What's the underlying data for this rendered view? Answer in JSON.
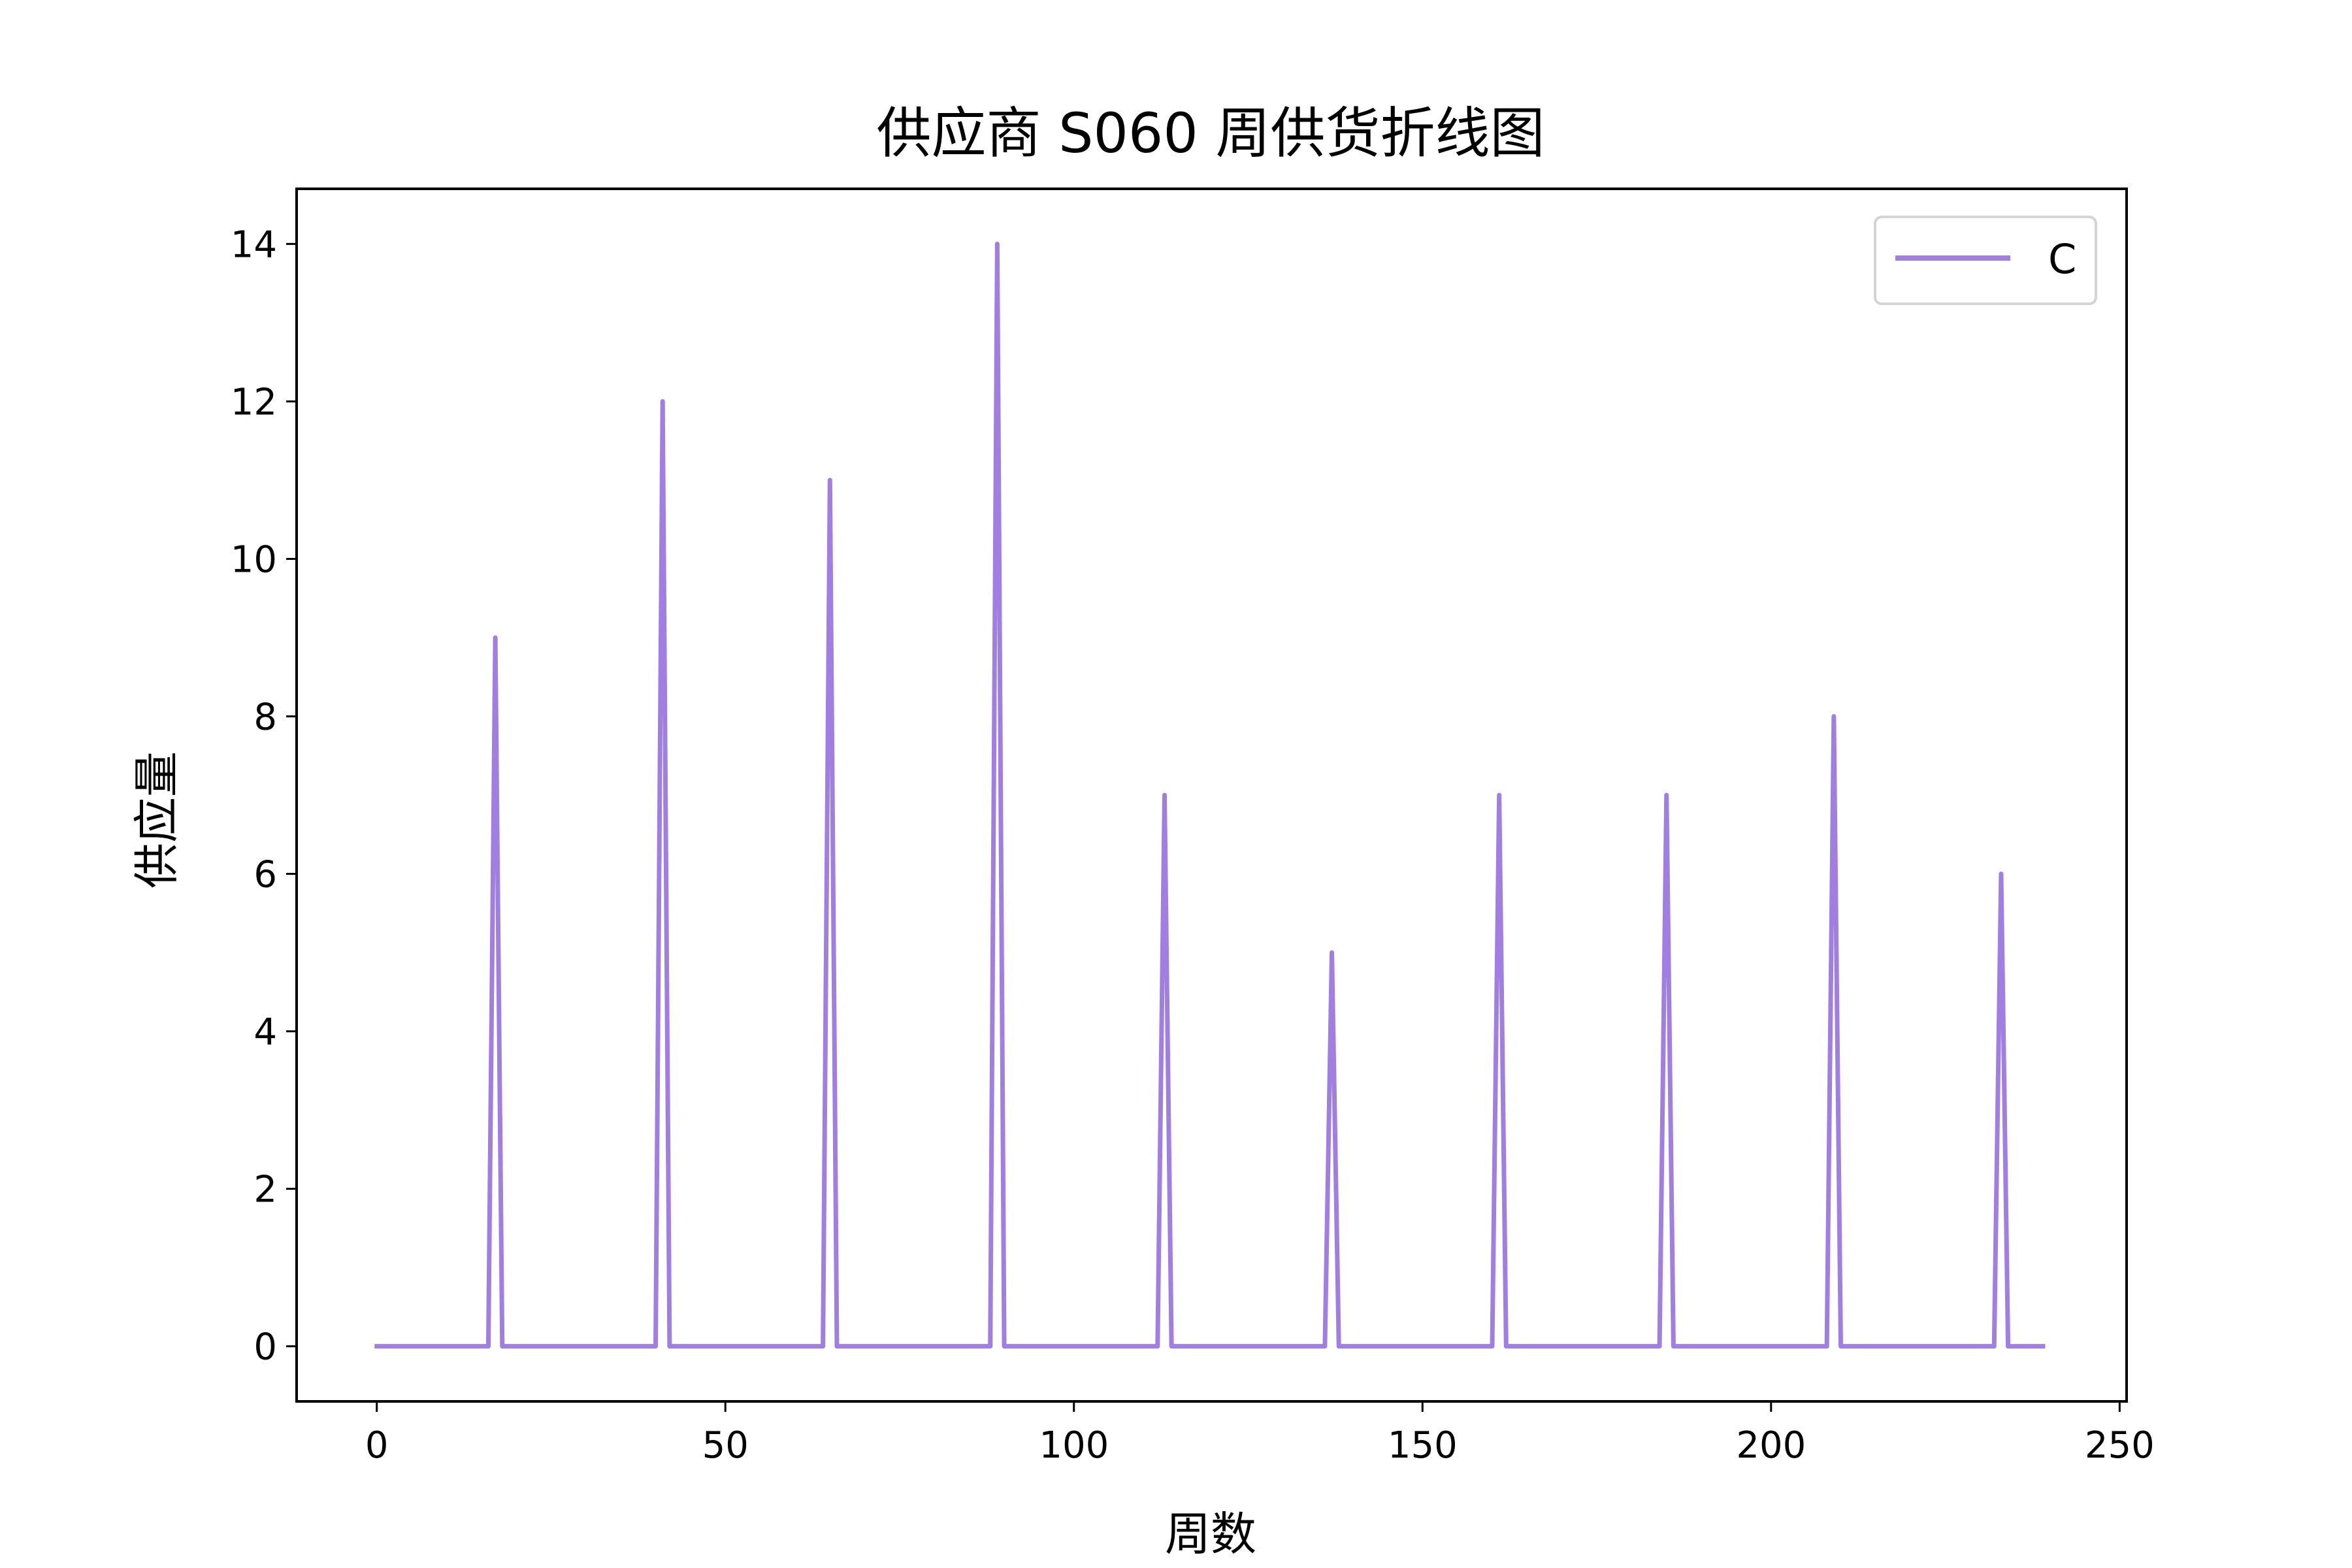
{
  "chart_data": {
    "type": "line",
    "title": "供应商 S060 周供货折线图",
    "xlabel": "周数",
    "ylabel": "供应量",
    "xlim": [
      -11.5,
      251
    ],
    "ylim": [
      -0.7,
      14.7
    ],
    "xticks": [
      0,
      50,
      100,
      150,
      200,
      250
    ],
    "yticks": [
      0,
      2,
      4,
      6,
      8,
      10,
      12,
      14
    ],
    "grid": false,
    "legend_position": "top-right",
    "series": [
      {
        "name": "C",
        "color": "#a07ee2",
        "x": [
          0,
          16,
          17,
          18,
          40,
          41,
          42,
          64,
          65,
          66,
          88,
          89,
          90,
          112,
          113,
          114,
          136,
          137,
          138,
          160,
          161,
          162,
          184,
          185,
          186,
          208,
          209,
          210,
          232,
          233,
          234,
          239
        ],
        "y": [
          0,
          0,
          9,
          0,
          0,
          12,
          0,
          0,
          11,
          0,
          0,
          14,
          0,
          0,
          7,
          0,
          0,
          5,
          0,
          0,
          7,
          0,
          0,
          7,
          0,
          0,
          8,
          0,
          0,
          6,
          0,
          0
        ]
      }
    ]
  }
}
